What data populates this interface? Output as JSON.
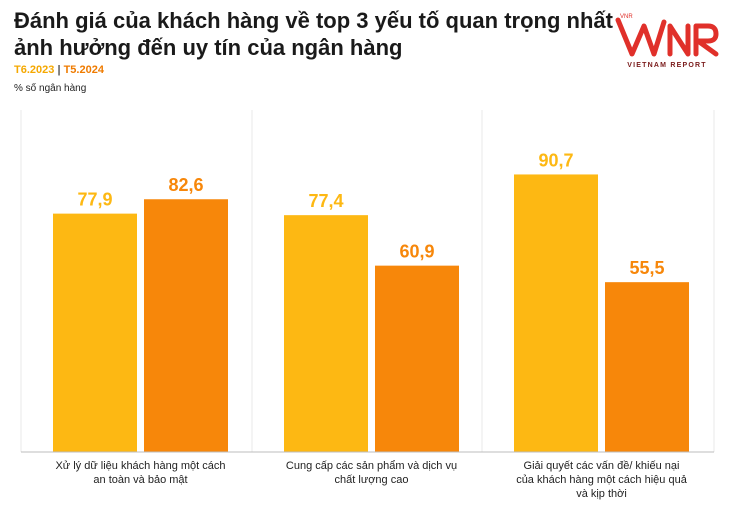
{
  "title": "Đánh giá của khách hàng về top 3 yếu tố quan trọng nhất ảnh hưởng đến uy tín của ngân hàng",
  "legend": {
    "series1": "T6.2023",
    "separator": "|",
    "series2": "T5.2024"
  },
  "unit": "% số ngân hàng",
  "logo": {
    "mark": "VNR",
    "subtitle": "VIETNAM REPORT"
  },
  "colors": {
    "series1": "#FDB813",
    "series2": "#F7870A",
    "title": "#1a1a1a",
    "logo": "#e0302a"
  },
  "chart_data": {
    "type": "bar",
    "categories": [
      [
        "Xử lý dữ liệu khách hàng một cách",
        "an toàn và bảo mật"
      ],
      [
        "Cung cấp các sản phẩm và dịch vụ",
        "chất lượng cao"
      ],
      [
        "Giải quyết các vấn đề/ khiếu nại",
        "của khách hàng một cách hiệu quả",
        "và kịp thời"
      ]
    ],
    "series": [
      {
        "name": "T6.2023",
        "values": [
          77.9,
          77.4,
          90.7
        ],
        "labels": [
          "77,9",
          "77,4",
          "90,7"
        ]
      },
      {
        "name": "T5.2024",
        "values": [
          82.6,
          60.9,
          55.5
        ],
        "labels": [
          "82,6",
          "60,9",
          "55,5"
        ]
      }
    ],
    "ylim": [
      0,
      100
    ],
    "grid": false,
    "legend_position": "top-left"
  }
}
